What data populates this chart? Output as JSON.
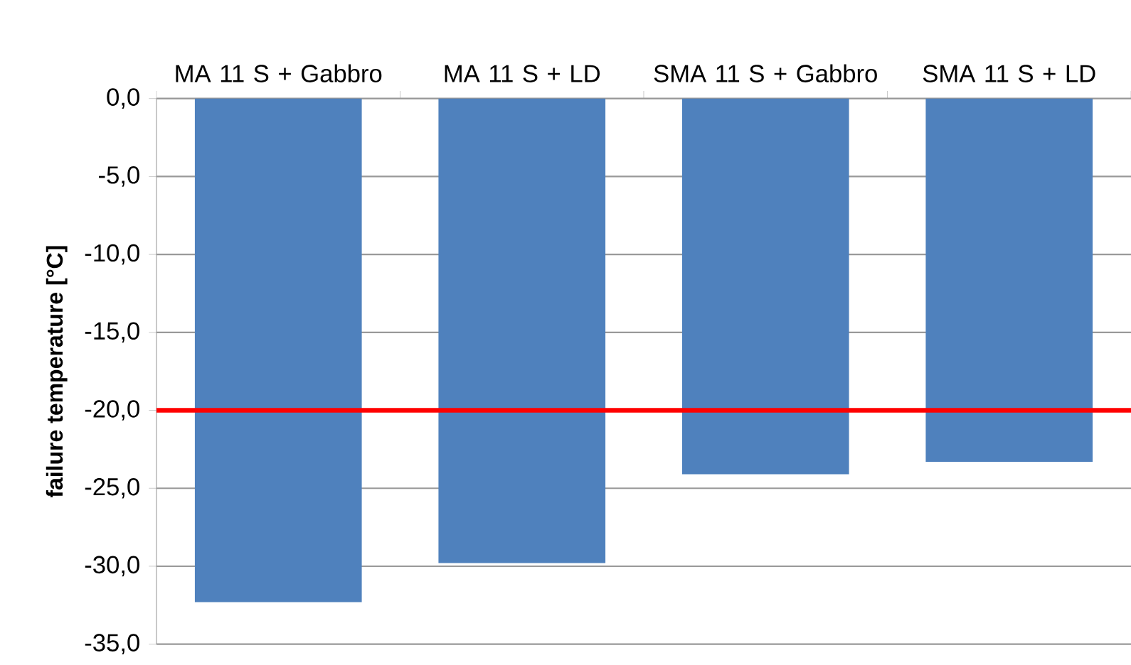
{
  "chart_data": {
    "type": "bar",
    "ylabel": "failure temperature [°C]",
    "categories": [
      "MA 11 S + Gabbro",
      "MA 11 S + LD",
      "SMA 11 S + Gabbro",
      "SMA 11 S + LD"
    ],
    "values": [
      -32.3,
      -29.8,
      -24.1,
      -23.3
    ],
    "color": "#4f81bd",
    "ylim": [
      -35,
      0
    ],
    "yticks": [
      {
        "value": 0,
        "label": "0,0"
      },
      {
        "value": -5,
        "label": "-5,0"
      },
      {
        "value": -10,
        "label": "-10,0"
      },
      {
        "value": -15,
        "label": "-15,0"
      },
      {
        "value": -20,
        "label": "-20,0"
      },
      {
        "value": -25,
        "label": "-25,0"
      },
      {
        "value": -30,
        "label": "-30,0"
      },
      {
        "value": -35,
        "label": "-35,0"
      }
    ],
    "grid": "y",
    "ref_lines": [
      {
        "axis": "y",
        "value": -20,
        "color": "#ff0000"
      }
    ]
  }
}
